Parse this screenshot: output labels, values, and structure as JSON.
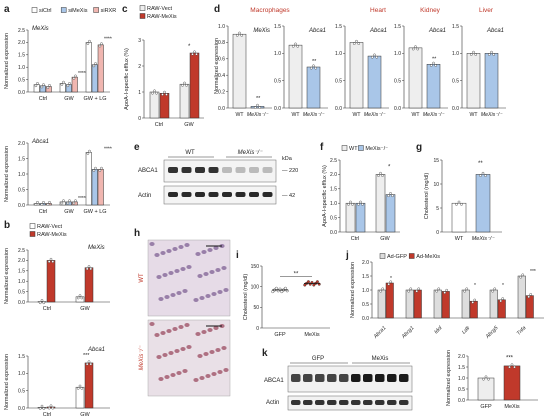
{
  "panels": {
    "a": {
      "letter": "a",
      "legend": [
        "siCtrl",
        "siMeXis",
        "siRXR"
      ],
      "colors": [
        "#ffffff",
        "#a9c6e8",
        "#f0b6b0"
      ],
      "ylabel": "Normalized expression",
      "top": {
        "gene": "MeXis",
        "ylim": [
          0,
          2.5
        ],
        "ticks": [
          0,
          0.5,
          1.0,
          1.5,
          2.0,
          2.5
        ],
        "categories": [
          "Ctrl",
          "GW",
          "GW + LG"
        ],
        "values": [
          [
            0.3,
            0.25,
            0.22
          ],
          [
            0.35,
            0.3,
            0.6
          ],
          [
            2.0,
            1.1,
            1.9
          ]
        ],
        "sig": [
          "",
          "****",
          "****"
        ]
      },
      "bottom": {
        "gene": "Abca1",
        "ylim": [
          0,
          2.0
        ],
        "ticks": [
          0,
          0.5,
          1.0,
          1.5,
          2.0
        ],
        "categories": [
          "Ctrl",
          "GW",
          "GW + LG"
        ],
        "values": [
          [
            0.05,
            0.05,
            0.05
          ],
          [
            0.1,
            0.1,
            0.1
          ],
          [
            1.7,
            1.15,
            1.15
          ]
        ],
        "sig": [
          "",
          "****",
          "****"
        ]
      }
    },
    "b": {
      "letter": "b",
      "legend": [
        "RAW-Vect",
        "RAW-MeXis"
      ],
      "colors": [
        "#ffffff",
        "#c0392b"
      ],
      "ylabel": "Normalized expression",
      "top": {
        "gene": "MeXis",
        "ylim": [
          0,
          2.5
        ],
        "ticks": [
          0,
          0.5,
          1.0,
          1.5,
          2.0,
          2.5
        ],
        "categories": [
          "Ctrl",
          "GW"
        ],
        "values": [
          [
            0.02,
            2.0
          ],
          [
            0.25,
            1.65
          ]
        ]
      },
      "bottom": {
        "gene": "Abca1",
        "ylim": [
          0,
          1.5
        ],
        "ticks": [
          0,
          0.5,
          1.0,
          1.5
        ],
        "categories": [
          "Ctrl",
          "GW"
        ],
        "values": [
          [
            0.02,
            0.03
          ],
          [
            0.6,
            1.3
          ]
        ],
        "sig": "***"
      }
    },
    "c": {
      "letter": "c",
      "legend": [
        "RAW-Vect",
        "RAW-MeXis"
      ],
      "colors": [
        "#eeeeee",
        "#c0392b"
      ],
      "ylabel": "ApoA-I-specific efflux (%)",
      "ylim": [
        0,
        3
      ],
      "ticks": [
        0,
        1,
        2,
        3
      ],
      "categories": [
        "Ctrl",
        "GW"
      ],
      "values": [
        [
          1.0,
          0.95
        ],
        [
          1.3,
          2.5
        ]
      ],
      "sig": "*"
    },
    "d": {
      "letter": "d",
      "groups": [
        "Macrophages",
        "Heart",
        "Kidney",
        "Liver"
      ],
      "ylabel": "Normalized expression",
      "xlabels": [
        "WT",
        "MeXis⁻/⁻"
      ],
      "sub": [
        {
          "gene": "MeXis",
          "ylim": [
            0,
            1.0
          ],
          "ticks": [
            0,
            0.2,
            0.4,
            0.6,
            0.8,
            1.0
          ],
          "values": [
            0.9,
            0.02
          ],
          "sig": "**"
        },
        {
          "gene": "Abca1",
          "ylim": [
            0,
            1.5
          ],
          "ticks": [
            0,
            0.5,
            1.0,
            1.5
          ],
          "values": [
            1.15,
            0.75
          ],
          "sig": "**"
        },
        {
          "gene": "Abca1",
          "ylim": [
            0,
            1.5
          ],
          "ticks": [
            0,
            0.5,
            1.0,
            1.5
          ],
          "values": [
            1.2,
            0.95
          ],
          "sig": ""
        },
        {
          "gene": "Abca1",
          "ylim": [
            0,
            1.5
          ],
          "ticks": [
            0,
            0.5,
            1.0,
            1.5
          ],
          "values": [
            1.1,
            0.8
          ],
          "sig": "**"
        },
        {
          "gene": "Abca1",
          "ylim": [
            0,
            1.5
          ],
          "ticks": [
            0,
            0.5,
            1.0,
            1.5
          ],
          "values": [
            1.0,
            1.0
          ],
          "sig": ""
        }
      ]
    },
    "e": {
      "letter": "e",
      "cols": [
        "WT",
        "MeXis⁻/⁻"
      ],
      "rows": [
        "ABCA1",
        "Actin"
      ],
      "kda_label": "kDa",
      "kda": [
        "220",
        "42"
      ]
    },
    "f": {
      "letter": "f",
      "legend": [
        "WT",
        "MeXis⁻/⁻"
      ],
      "colors": [
        "#eeeeee",
        "#a9c6e8"
      ],
      "ylabel": "ApoA-I-specific efflux (%)",
      "ylim": [
        0,
        2.5
      ],
      "ticks": [
        0,
        0.5,
        1.0,
        1.5,
        2.0,
        2.5
      ],
      "categories": [
        "Ctrl",
        "GW"
      ],
      "values": [
        [
          1.0,
          1.0
        ],
        [
          2.0,
          1.3
        ]
      ],
      "sig": "*"
    },
    "g": {
      "letter": "g",
      "ylabel": "Cholesterol (mg/dl)",
      "ylim": [
        0,
        15
      ],
      "ticks": [
        0,
        5,
        10,
        15
      ],
      "categories": [
        "WT",
        "MeXis⁻/⁻"
      ],
      "values": [
        6,
        12
      ],
      "colors": [
        "#ffffff",
        "#a9c6e8"
      ],
      "sig": "**"
    },
    "h": {
      "letter": "h",
      "labels": [
        "WT",
        "MeXis⁻/⁻"
      ]
    },
    "i": {
      "letter": "i",
      "ylabel": "Cholesterol (mg/dl)",
      "ylim": [
        0,
        150
      ],
      "ticks": [
        0,
        50,
        100,
        150
      ],
      "categories": [
        "GFP",
        "MeXis"
      ],
      "values": [
        92,
        108
      ],
      "sig": "**"
    },
    "j": {
      "letter": "j",
      "legend": [
        "Ad-GFP",
        "Ad-MeXis"
      ],
      "colors": [
        "#dddddd",
        "#c0392b"
      ],
      "ylabel": "Normalized expression",
      "ylim": [
        0,
        2.0
      ],
      "ticks": [
        0,
        0.5,
        1.0,
        1.5,
        2.0
      ],
      "categories": [
        "Abca1",
        "Abcg1",
        "Idol",
        "Ldlr",
        "Abcg5",
        "Tnfa"
      ],
      "values": [
        [
          1.0,
          1.25
        ],
        [
          1.0,
          1.0
        ],
        [
          1.0,
          0.95
        ],
        [
          1.0,
          0.6
        ],
        [
          1.0,
          0.65
        ],
        [
          1.5,
          0.8
        ]
      ],
      "sig": [
        "*",
        "",
        "",
        "*",
        "*",
        "***"
      ]
    },
    "k": {
      "letter": "k",
      "cols": [
        "GFP",
        "MeXis"
      ],
      "rows": [
        "ABCA1",
        "Actin"
      ],
      "chart": {
        "ylabel": "Normalized expression",
        "ylim": [
          0,
          2.0
        ],
        "ticks": [
          0,
          0.5,
          1.0,
          1.5,
          2.0
        ],
        "categories": [
          "GFP",
          "MeXis"
        ],
        "values": [
          1.0,
          1.55
        ],
        "colors": [
          "#eeeeee",
          "#c0392b"
        ],
        "sig": "***"
      }
    }
  }
}
